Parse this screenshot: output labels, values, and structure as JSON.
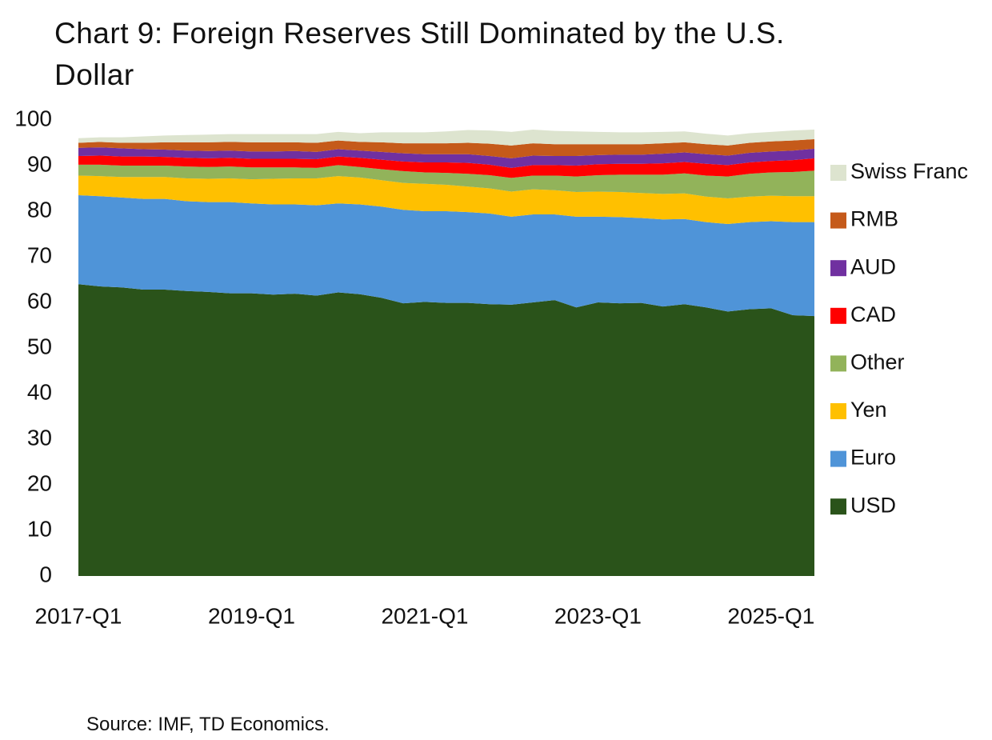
{
  "chart_data": {
    "type": "stacked_area",
    "title": "Chart 9: Foreign Reserves Still Dominated by the U.S. Dollar",
    "source": "Source: IMF, TD Economics.",
    "categories": [
      "2017-Q1",
      null,
      null,
      null,
      null,
      null,
      null,
      null,
      "2019-Q1",
      null,
      null,
      null,
      null,
      null,
      null,
      null,
      "2021-Q1",
      null,
      null,
      null,
      null,
      null,
      null,
      null,
      "2023-Q1",
      null,
      null,
      null,
      null,
      null,
      null,
      null,
      "2025-Q1",
      null,
      null
    ],
    "ylim": [
      0,
      100
    ],
    "yticks": [
      0,
      10,
      20,
      30,
      40,
      50,
      60,
      70,
      80,
      90,
      100
    ],
    "series": [
      {
        "name": "USD",
        "color": "#2a531a",
        "values": [
          64.0,
          63.5,
          63.3,
          62.8,
          62.8,
          62.5,
          62.3,
          62.0,
          62.0,
          61.7,
          61.9,
          61.5,
          62.2,
          61.8,
          61.0,
          59.8,
          60.1,
          59.9,
          59.9,
          59.6,
          59.5,
          60.0,
          60.5,
          58.9,
          60.0,
          59.8,
          59.9,
          59.1,
          59.6,
          58.9,
          58.0,
          58.5,
          58.7,
          57.2,
          57.0
        ]
      },
      {
        "name": "Euro",
        "color": "#4f94d8",
        "values": [
          19.5,
          19.8,
          19.7,
          19.9,
          19.9,
          19.7,
          19.7,
          20.0,
          19.7,
          19.8,
          19.6,
          19.8,
          19.5,
          19.7,
          20.0,
          20.5,
          19.9,
          20.1,
          19.9,
          19.9,
          19.3,
          19.3,
          18.8,
          19.9,
          18.8,
          18.9,
          18.6,
          19.1,
          18.7,
          18.7,
          19.2,
          19.1,
          19.1,
          20.4,
          20.6
        ]
      },
      {
        "name": "Yen",
        "color": "#ffc000",
        "values": [
          4.3,
          4.4,
          4.5,
          4.8,
          4.8,
          5.0,
          5.1,
          5.2,
          5.3,
          5.6,
          5.7,
          5.9,
          6.0,
          5.9,
          5.8,
          5.9,
          6.0,
          5.8,
          5.6,
          5.5,
          5.5,
          5.5,
          5.3,
          5.4,
          5.5,
          5.5,
          5.5,
          5.6,
          5.6,
          5.6,
          5.6,
          5.6,
          5.6,
          5.7,
          5.7
        ]
      },
      {
        "name": "Other",
        "color": "#92b35a",
        "values": [
          2.4,
          2.5,
          2.5,
          2.5,
          2.5,
          2.6,
          2.6,
          2.6,
          2.6,
          2.5,
          2.4,
          2.3,
          2.4,
          2.3,
          2.4,
          2.6,
          2.5,
          2.6,
          2.8,
          2.9,
          3.0,
          3.0,
          3.2,
          3.4,
          3.6,
          3.8,
          4.0,
          4.2,
          4.4,
          4.6,
          4.8,
          5.0,
          5.1,
          5.3,
          5.6
        ]
      },
      {
        "name": "CAD",
        "color": "#ff0000",
        "values": [
          1.9,
          2.0,
          2.0,
          2.0,
          1.9,
          1.9,
          1.9,
          1.9,
          1.9,
          1.9,
          1.9,
          1.9,
          1.9,
          2.0,
          2.1,
          2.1,
          2.2,
          2.3,
          2.4,
          2.3,
          2.2,
          2.3,
          2.3,
          2.4,
          2.4,
          2.4,
          2.4,
          2.5,
          2.5,
          2.6,
          2.5,
          2.5,
          2.5,
          2.6,
          2.7
        ]
      },
      {
        "name": "AUD",
        "color": "#7030a0",
        "values": [
          1.8,
          1.8,
          1.8,
          1.6,
          1.6,
          1.6,
          1.6,
          1.6,
          1.6,
          1.6,
          1.7,
          1.6,
          1.6,
          1.6,
          1.7,
          1.8,
          1.8,
          1.8,
          1.9,
          1.9,
          2.1,
          2.1,
          2.0,
          2.1,
          2.0,
          2.0,
          2.0,
          2.1,
          2.1,
          2.1,
          2.1,
          2.1,
          2.1,
          2.1,
          2.1
        ]
      },
      {
        "name": "RMB",
        "color": "#c55a1a",
        "values": [
          1.1,
          1.2,
          1.2,
          1.4,
          1.6,
          1.8,
          1.9,
          1.9,
          2.0,
          2.0,
          1.9,
          2.0,
          1.9,
          1.9,
          2.1,
          2.2,
          2.4,
          2.4,
          2.5,
          2.7,
          2.8,
          2.7,
          2.6,
          2.6,
          2.4,
          2.3,
          2.3,
          2.3,
          2.2,
          2.2,
          2.2,
          2.2,
          2.2,
          2.2,
          2.1
        ]
      },
      {
        "name": "Swiss Franc",
        "color": "#dde4cf",
        "values": [
          1.0,
          1.0,
          1.2,
          1.4,
          1.5,
          1.6,
          1.7,
          1.7,
          1.8,
          1.8,
          1.8,
          1.9,
          1.9,
          1.9,
          2.2,
          2.4,
          2.4,
          2.6,
          2.8,
          2.9,
          3.0,
          3.0,
          2.9,
          2.8,
          2.7,
          2.6,
          2.6,
          2.5,
          2.4,
          2.3,
          2.2,
          2.1,
          2.1,
          2.2,
          2.1
        ]
      }
    ]
  }
}
